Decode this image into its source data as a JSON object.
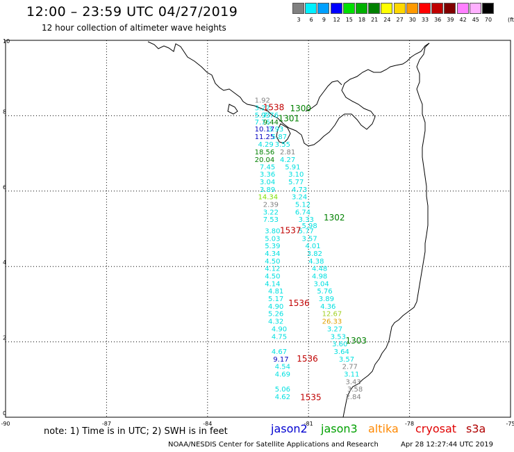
{
  "header": {
    "title": "12:00 – 23:59 UTC 04/27/2019",
    "subtitle": "12 hour collection of altimeter wave heights"
  },
  "colorbar": {
    "unit": "(ft)",
    "bins": [
      {
        "label": "3",
        "color": "#808080"
      },
      {
        "label": "6",
        "color": "#00f0ff"
      },
      {
        "label": "9",
        "color": "#00a0ff"
      },
      {
        "label": "12",
        "color": "#0000ff"
      },
      {
        "label": "15",
        "color": "#00e000"
      },
      {
        "label": "18",
        "color": "#00b000"
      },
      {
        "label": "21",
        "color": "#008000"
      },
      {
        "label": "24",
        "color": "#ffff00"
      },
      {
        "label": "27",
        "color": "#ffd700"
      },
      {
        "label": "30",
        "color": "#ff9900"
      },
      {
        "label": "33",
        "color": "#ff0000"
      },
      {
        "label": "36",
        "color": "#c00000"
      },
      {
        "label": "39",
        "color": "#800000"
      },
      {
        "label": "42",
        "color": "#ff80ff"
      },
      {
        "label": "45",
        "color": "#ffb0ff"
      },
      {
        "label": "70",
        "color": "#000000"
      }
    ]
  },
  "map": {
    "lon_ticks": [
      "-90",
      "-87",
      "-84",
      "-81",
      "-78",
      "-75"
    ],
    "lat_ticks": [
      "0",
      "2",
      "4",
      "6",
      "8",
      "10"
    ],
    "lon_range": [
      -90,
      -75
    ],
    "lat_range": [
      0,
      10
    ]
  },
  "observations": [
    {
      "v": "1.92",
      "c": "#808080",
      "lon": -82.6,
      "lat": 8.35
    },
    {
      "v": "3.22",
      "c": "#00e0e0",
      "lon": -82.6,
      "lat": 8.15
    },
    {
      "v": "5.93",
      "c": "#00e0e0",
      "lon": -82.6,
      "lat": 7.95
    },
    {
      "v": "7.76",
      "c": "#00e0e0",
      "lon": -82.6,
      "lat": 7.77
    },
    {
      "v": "7.76",
      "c": "#00e0e0",
      "lon": -82.35,
      "lat": 7.95
    },
    {
      "v": "9.44",
      "c": "#008000",
      "lon": -82.35,
      "lat": 7.77
    },
    {
      "v": "10.17",
      "c": "#0000c0",
      "lon": -82.6,
      "lat": 7.58
    },
    {
      "v": "3.93",
      "c": "#00e0e0",
      "lon": -82.2,
      "lat": 7.58
    },
    {
      "v": "11.25",
      "c": "#0000c0",
      "lon": -82.6,
      "lat": 7.38
    },
    {
      "v": "5.87",
      "c": "#00e0e0",
      "lon": -82.1,
      "lat": 7.38
    },
    {
      "v": "4.29",
      "c": "#00e0e0",
      "lon": -82.5,
      "lat": 7.18
    },
    {
      "v": "3.55",
      "c": "#00e0e0",
      "lon": -82.0,
      "lat": 7.18
    },
    {
      "v": "18.56",
      "c": "#008000",
      "lon": -82.6,
      "lat": 6.97
    },
    {
      "v": "2.81",
      "c": "#808080",
      "lon": -81.85,
      "lat": 6.97
    },
    {
      "v": "20.04",
      "c": "#008000",
      "lon": -82.6,
      "lat": 6.77
    },
    {
      "v": "4.27",
      "c": "#00e0e0",
      "lon": -81.85,
      "lat": 6.77
    },
    {
      "v": "7.45",
      "c": "#00e0e0",
      "lon": -82.45,
      "lat": 6.58
    },
    {
      "v": "5.91",
      "c": "#00e0e0",
      "lon": -81.7,
      "lat": 6.58
    },
    {
      "v": "3.36",
      "c": "#00e0e0",
      "lon": -82.45,
      "lat": 6.38
    },
    {
      "v": "3.10",
      "c": "#00e0e0",
      "lon": -81.6,
      "lat": 6.38
    },
    {
      "v": "3.04",
      "c": "#00e0e0",
      "lon": -82.45,
      "lat": 6.18
    },
    {
      "v": "5.77",
      "c": "#00e0e0",
      "lon": -81.6,
      "lat": 6.18
    },
    {
      "v": "3.89",
      "c": "#00e0e0",
      "lon": -82.45,
      "lat": 5.98
    },
    {
      "v": "4.73",
      "c": "#00e0e0",
      "lon": -81.5,
      "lat": 5.98
    },
    {
      "v": "14.34",
      "c": "#80e000",
      "lon": -82.5,
      "lat": 5.78
    },
    {
      "v": "3.24",
      "c": "#00e0e0",
      "lon": -81.5,
      "lat": 5.78
    },
    {
      "v": "2.39",
      "c": "#808080",
      "lon": -82.35,
      "lat": 5.58
    },
    {
      "v": "5.12",
      "c": "#00e0e0",
      "lon": -81.4,
      "lat": 5.58
    },
    {
      "v": "3.22",
      "c": "#00e0e0",
      "lon": -82.35,
      "lat": 5.38
    },
    {
      "v": "6.74",
      "c": "#00e0e0",
      "lon": -81.4,
      "lat": 5.38
    },
    {
      "v": "7.53",
      "c": "#00e0e0",
      "lon": -82.35,
      "lat": 5.18
    },
    {
      "v": "3.33",
      "c": "#00e0e0",
      "lon": -81.3,
      "lat": 5.18
    },
    {
      "v": "5.98",
      "c": "#00e0e0",
      "lon": -81.2,
      "lat": 5.02
    },
    {
      "v": "3.80",
      "c": "#00e0e0",
      "lon": -82.3,
      "lat": 4.88
    },
    {
      "v": "5.77",
      "c": "#00e0e0",
      "lon": -81.3,
      "lat": 4.88
    },
    {
      "v": "5.03",
      "c": "#00e0e0",
      "lon": -82.3,
      "lat": 4.68
    },
    {
      "v": "3.57",
      "c": "#00e0e0",
      "lon": -81.2,
      "lat": 4.68
    },
    {
      "v": "5.39",
      "c": "#00e0e0",
      "lon": -82.3,
      "lat": 4.48
    },
    {
      "v": "4.01",
      "c": "#00e0e0",
      "lon": -81.1,
      "lat": 4.48
    },
    {
      "v": "4.34",
      "c": "#00e0e0",
      "lon": -82.3,
      "lat": 4.28
    },
    {
      "v": "3.82",
      "c": "#00e0e0",
      "lon": -81.05,
      "lat": 4.28
    },
    {
      "v": "4.50",
      "c": "#00e0e0",
      "lon": -82.3,
      "lat": 4.08
    },
    {
      "v": "4.38",
      "c": "#00e0e0",
      "lon": -81.0,
      "lat": 4.08
    },
    {
      "v": "4.12",
      "c": "#00e0e0",
      "lon": -82.3,
      "lat": 3.88
    },
    {
      "v": "4.48",
      "c": "#00e0e0",
      "lon": -80.9,
      "lat": 3.88
    },
    {
      "v": "4.50",
      "c": "#00e0e0",
      "lon": -82.3,
      "lat": 3.68
    },
    {
      "v": "4.98",
      "c": "#00e0e0",
      "lon": -80.9,
      "lat": 3.68
    },
    {
      "v": "4.14",
      "c": "#00e0e0",
      "lon": -82.3,
      "lat": 3.48
    },
    {
      "v": "3.04",
      "c": "#00e0e0",
      "lon": -80.85,
      "lat": 3.48
    },
    {
      "v": "4.81",
      "c": "#00e0e0",
      "lon": -82.2,
      "lat": 3.28
    },
    {
      "v": "5.76",
      "c": "#00e0e0",
      "lon": -80.75,
      "lat": 3.28
    },
    {
      "v": "5.17",
      "c": "#00e0e0",
      "lon": -82.2,
      "lat": 3.08
    },
    {
      "v": "3.89",
      "c": "#00e0e0",
      "lon": -80.7,
      "lat": 3.08
    },
    {
      "v": "4.90",
      "c": "#00e0e0",
      "lon": -82.2,
      "lat": 2.88
    },
    {
      "v": "4.36",
      "c": "#00e0e0",
      "lon": -80.65,
      "lat": 2.88
    },
    {
      "v": "12.67",
      "c": "#a0d020",
      "lon": -80.6,
      "lat": 2.68
    },
    {
      "v": "5.26",
      "c": "#00e0e0",
      "lon": -82.2,
      "lat": 2.68
    },
    {
      "v": "26.33",
      "c": "#e0a000",
      "lon": -80.6,
      "lat": 2.48
    },
    {
      "v": "4.32",
      "c": "#00e0e0",
      "lon": -82.2,
      "lat": 2.48
    },
    {
      "v": "3.27",
      "c": "#00e0e0",
      "lon": -80.45,
      "lat": 2.28
    },
    {
      "v": "4.90",
      "c": "#00e0e0",
      "lon": -82.1,
      "lat": 2.28
    },
    {
      "v": "3.53",
      "c": "#00e0e0",
      "lon": -80.35,
      "lat": 2.08
    },
    {
      "v": "4.75",
      "c": "#00e0e0",
      "lon": -82.1,
      "lat": 2.08
    },
    {
      "v": "3.60",
      "c": "#00e0e0",
      "lon": -80.3,
      "lat": 1.88
    },
    {
      "v": "4.67",
      "c": "#00e0e0",
      "lon": -82.1,
      "lat": 1.68
    },
    {
      "v": "3.64",
      "c": "#00e0e0",
      "lon": -80.25,
      "lat": 1.68
    },
    {
      "v": "9.17",
      "c": "#0000c0",
      "lon": -82.05,
      "lat": 1.48
    },
    {
      "v": "3.57",
      "c": "#00e0e0",
      "lon": -80.1,
      "lat": 1.48
    },
    {
      "v": "2.77",
      "c": "#808080",
      "lon": -80.0,
      "lat": 1.28
    },
    {
      "v": "4.54",
      "c": "#00e0e0",
      "lon": -82.0,
      "lat": 1.28
    },
    {
      "v": "3.11",
      "c": "#00e0e0",
      "lon": -79.95,
      "lat": 1.08
    },
    {
      "v": "4.69",
      "c": "#00e0e0",
      "lon": -82.0,
      "lat": 1.08
    },
    {
      "v": "3.43",
      "c": "#808080",
      "lon": -79.9,
      "lat": 0.88
    },
    {
      "v": "5.06",
      "c": "#00e0e0",
      "lon": -82.0,
      "lat": 0.68
    },
    {
      "v": "3.58",
      "c": "#808080",
      "lon": -79.85,
      "lat": 0.68
    },
    {
      "v": "4.62",
      "c": "#00e0e0",
      "lon": -82.0,
      "lat": 0.48
    },
    {
      "v": "2.84",
      "c": "#808080",
      "lon": -79.9,
      "lat": 0.48
    }
  ],
  "pass_times": [
    {
      "t": "1538",
      "c": "#c00000",
      "lon": -82.35,
      "lat": 8.15
    },
    {
      "t": "1300",
      "c": "#008000",
      "lon": -81.55,
      "lat": 8.12
    },
    {
      "t": "1301",
      "c": "#008000",
      "lon": -81.9,
      "lat": 7.85
    },
    {
      "t": "1302",
      "c": "#008000",
      "lon": -80.55,
      "lat": 5.22
    },
    {
      "t": "1537",
      "c": "#c00000",
      "lon": -81.85,
      "lat": 4.88
    },
    {
      "t": "1536",
      "c": "#c00000",
      "lon": -81.6,
      "lat": 2.95
    },
    {
      "t": "1303",
      "c": "#008000",
      "lon": -79.9,
      "lat": 1.96
    },
    {
      "t": "1536",
      "c": "#c00000",
      "lon": -81.35,
      "lat": 1.48
    },
    {
      "t": "1535",
      "c": "#c00000",
      "lon": -81.25,
      "lat": 0.45
    }
  ],
  "note": "note:  1) Time is in UTC;  2) SWH is in feet",
  "legend": [
    {
      "label": "jason2",
      "color": "#0000d0"
    },
    {
      "label": "jason3",
      "color": "#00a000"
    },
    {
      "label": "altika",
      "color": "#ff8800"
    },
    {
      "label": "cryosat",
      "color": "#e00000"
    },
    {
      "label": "s3a",
      "color": "#b00000"
    }
  ],
  "footer": {
    "credit": "NOAA/NESDIS Center for Satellite Applications and Research",
    "generated": "Apr 28 12:27:44 UTC 2019"
  }
}
